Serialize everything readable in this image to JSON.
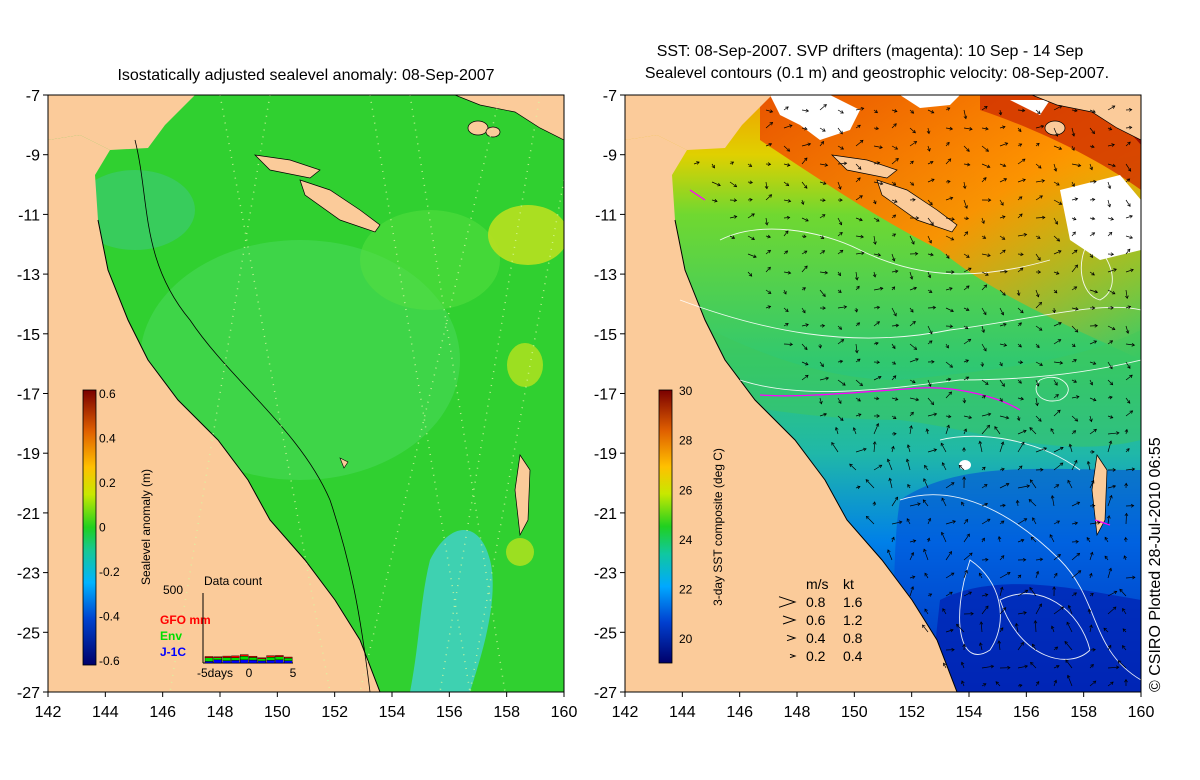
{
  "left_panel": {
    "title": "Isostatically adjusted sealevel anomaly: 08-Sep-2007",
    "colorbar": {
      "label": "Sealevel anomaly (m)",
      "min": -0.6,
      "max": 0.6,
      "ticks": [
        "0.6",
        "0.4",
        "0.2",
        "0",
        "-0.2",
        "-0.4",
        "-0.6"
      ]
    },
    "data_count": {
      "title": "Data count",
      "ymax_label": "500",
      "xlabel": "-5days",
      "xticks": [
        "0",
        "5"
      ],
      "legend": [
        {
          "label": "GFO mm",
          "color": "#ff0000"
        },
        {
          "label": "Env",
          "color": "#00dd00"
        },
        {
          "label": "J-1C",
          "color": "#0000ff"
        }
      ],
      "bars": [
        {
          "j1c": 15,
          "env": 35,
          "gfo": 12
        },
        {
          "j1c": 30,
          "env": 20,
          "gfo": 10
        },
        {
          "j1c": 22,
          "env": 30,
          "gfo": 14
        },
        {
          "j1c": 25,
          "env": 25,
          "gfo": 18
        },
        {
          "j1c": 30,
          "env": 35,
          "gfo": 15
        },
        {
          "j1c": 28,
          "env": 25,
          "gfo": 12
        },
        {
          "j1c": 20,
          "env": 20,
          "gfo": 10
        },
        {
          "j1c": 25,
          "env": 30,
          "gfo": 15
        },
        {
          "j1c": 30,
          "env": 30,
          "gfo": 12
        },
        {
          "j1c": 22,
          "env": 25,
          "gfo": 10
        }
      ]
    }
  },
  "right_panel": {
    "title_line1": "SST: 08-Sep-2007. SVP drifters (magenta): 10 Sep - 14 Sep",
    "title_line2": "Sealevel contours (0.1 m) and geostrophic velocity: 08-Sep-2007.",
    "colorbar": {
      "label": "3-day SST composite (deg C)",
      "min": 19,
      "max": 30,
      "ticks": [
        "30",
        "28",
        "26",
        "24",
        "22",
        "20"
      ]
    },
    "velocity_legend": {
      "header_ms": "m/s",
      "header_kt": "kt",
      "rows": [
        {
          "ms": "0.8",
          "kt": "1.6"
        },
        {
          "ms": "0.6",
          "kt": "1.2"
        },
        {
          "ms": "0.4",
          "kt": "0.8"
        },
        {
          "ms": "0.2",
          "kt": "0.4"
        }
      ]
    }
  },
  "axes": {
    "lon_ticks": [
      "142",
      "144",
      "146",
      "148",
      "150",
      "152",
      "154",
      "156",
      "158",
      "160"
    ],
    "lat_ticks": [
      "-7",
      "-9",
      "-11",
      "-13",
      "-15",
      "-17",
      "-19",
      "-21",
      "-23",
      "-25",
      "-27"
    ]
  },
  "credit": "© CSIRO Plotted 28-Jul-2010 06:55",
  "colors": {
    "land": "#fbcb9a",
    "ocean_sla": "#30d030",
    "sst_warm": "#e88a00",
    "sst_cold": "#0030c0"
  }
}
